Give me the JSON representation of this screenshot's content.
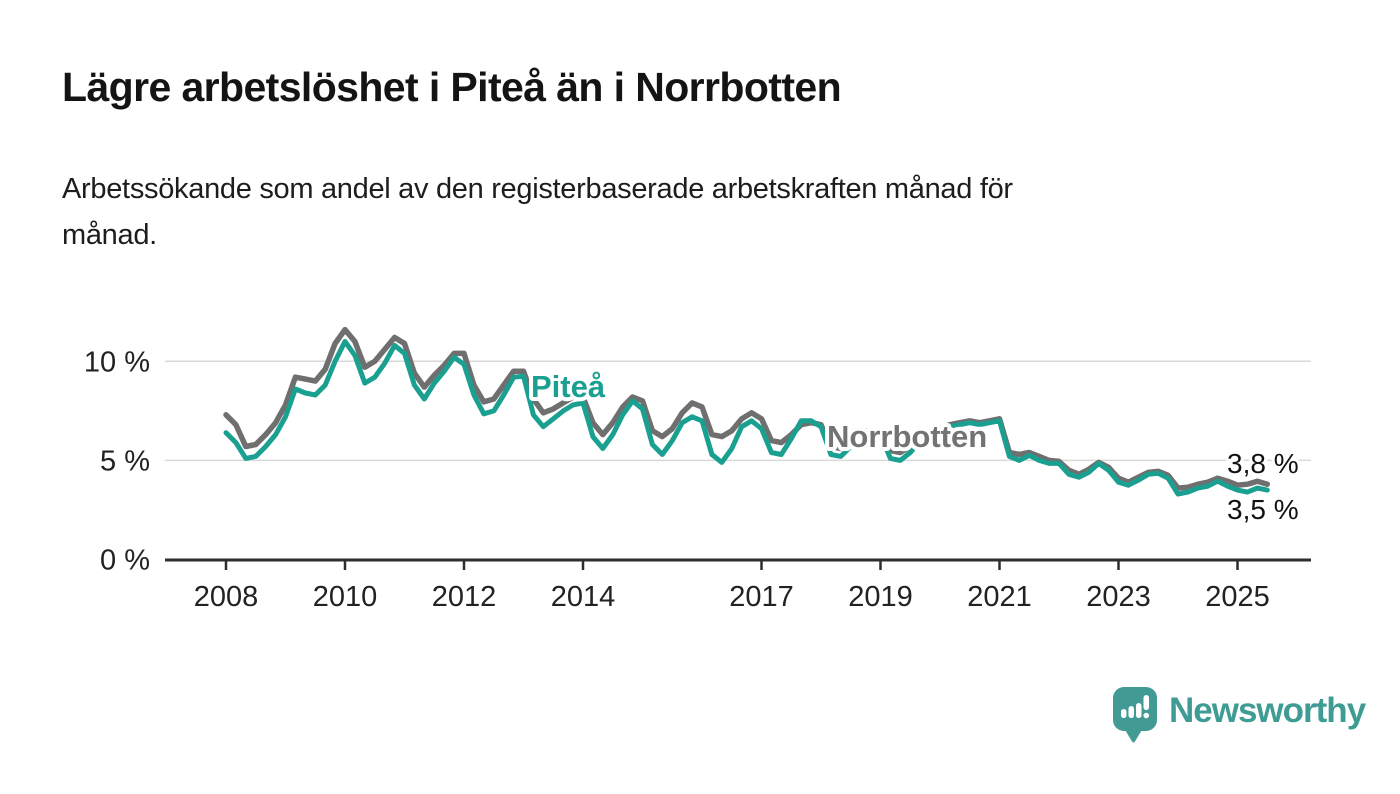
{
  "header": {
    "title": "Lägre arbetslöshet i Piteå än i Norrbotten",
    "subtitle_lines": [
      "Arbetssökande som andel av den registerbaserade arbetskraften månad för",
      "månad."
    ]
  },
  "chart_data": {
    "type": "line",
    "title": "Lägre arbetslöshet i Piteå än i Norrbotten",
    "subtitle": "Arbetssökande som andel av den registerbaserade arbetskraften månad för månad.",
    "x_unit": "year (monthly data, sampled ~every 2 months)",
    "x_start": 2008.0,
    "x_step_years": 0.16667,
    "x_end": 2025.5,
    "ylim": [
      0,
      12.5
    ],
    "grid": "horizontal-only",
    "legend_position": "inline-labels-on-lines",
    "x_axis_ticks": [
      2008,
      2010,
      2012,
      2014,
      2017,
      2019,
      2021,
      2023,
      2025
    ],
    "y_axis_ticks": [
      {
        "value": 0,
        "label": "0 %"
      },
      {
        "value": 5,
        "label": "5 %"
      },
      {
        "value": 10,
        "label": "10 %"
      }
    ],
    "series": [
      {
        "name": "Norrbotten",
        "color": "#6f6f6f",
        "last_value_label": "3,8 %",
        "values": [
          7.3,
          6.8,
          5.7,
          5.8,
          6.3,
          6.9,
          7.8,
          9.2,
          9.1,
          9.0,
          9.6,
          10.9,
          11.6,
          11.0,
          9.7,
          10.0,
          10.6,
          11.2,
          10.9,
          9.4,
          8.7,
          9.3,
          9.8,
          10.4,
          10.4,
          8.8,
          7.95,
          8.1,
          8.8,
          9.5,
          9.5,
          8.1,
          7.4,
          7.6,
          7.9,
          8.2,
          8.2,
          6.9,
          6.3,
          6.9,
          7.7,
          8.2,
          8.0,
          6.5,
          6.2,
          6.6,
          7.4,
          7.9,
          7.7,
          6.3,
          6.2,
          6.5,
          7.1,
          7.4,
          7.1,
          6.0,
          5.9,
          6.3,
          6.8,
          6.9,
          6.8,
          5.7,
          5.6,
          5.9,
          6.4,
          6.5,
          6.4,
          5.5,
          5.4,
          5.7,
          6.2,
          6.5,
          6.6,
          6.8,
          6.9,
          7.0,
          6.9,
          7.0,
          7.1,
          5.4,
          5.3,
          5.4,
          5.2,
          5.0,
          4.95,
          4.5,
          4.3,
          4.55,
          4.9,
          4.65,
          4.1,
          3.9,
          4.15,
          4.4,
          4.45,
          4.25,
          3.6,
          3.65,
          3.8,
          3.9,
          4.1,
          3.95,
          3.75,
          3.8,
          3.95,
          3.8
        ]
      },
      {
        "name": "Piteå",
        "color": "#1aa091",
        "last_value_label": "3,5 %",
        "values": [
          6.4,
          5.9,
          5.1,
          5.2,
          5.7,
          6.3,
          7.2,
          8.6,
          8.4,
          8.3,
          8.8,
          10.0,
          11.0,
          10.3,
          8.9,
          9.2,
          9.9,
          10.8,
          10.4,
          8.8,
          8.1,
          8.9,
          9.5,
          10.2,
          9.85,
          8.3,
          7.35,
          7.5,
          8.3,
          9.2,
          9.25,
          7.3,
          6.7,
          7.1,
          7.5,
          7.8,
          7.9,
          6.2,
          5.6,
          6.3,
          7.3,
          8.0,
          7.6,
          5.8,
          5.3,
          6.0,
          6.9,
          7.2,
          7.0,
          5.3,
          4.9,
          5.6,
          6.7,
          7.0,
          6.6,
          5.4,
          5.3,
          6.1,
          7.0,
          7.0,
          6.7,
          5.3,
          5.2,
          5.7,
          6.3,
          6.5,
          6.3,
          5.1,
          5.0,
          5.4,
          6.0,
          6.4,
          6.5,
          6.7,
          6.8,
          6.9,
          6.8,
          6.9,
          7.0,
          5.2,
          5.0,
          5.25,
          5.0,
          4.85,
          4.85,
          4.3,
          4.15,
          4.4,
          4.85,
          4.5,
          3.9,
          3.75,
          4.0,
          4.3,
          4.35,
          4.1,
          3.3,
          3.4,
          3.6,
          3.7,
          3.95,
          3.7,
          3.5,
          3.4,
          3.6,
          3.5
        ]
      }
    ],
    "end_labels": [
      {
        "series": "Norrbotten",
        "label": "3,8 %"
      },
      {
        "series": "Piteå",
        "label": "3,5 %"
      }
    ]
  },
  "footer": {
    "brand": "Newsworthy"
  },
  "colors": {
    "pitea_line": "#1aa091",
    "norrbotten_line": "#6f6f6f",
    "gridline": "#d9d9d9",
    "axis": "#2e2e2e",
    "brand_teal": "#3f9c95",
    "background": "#ffffff"
  }
}
